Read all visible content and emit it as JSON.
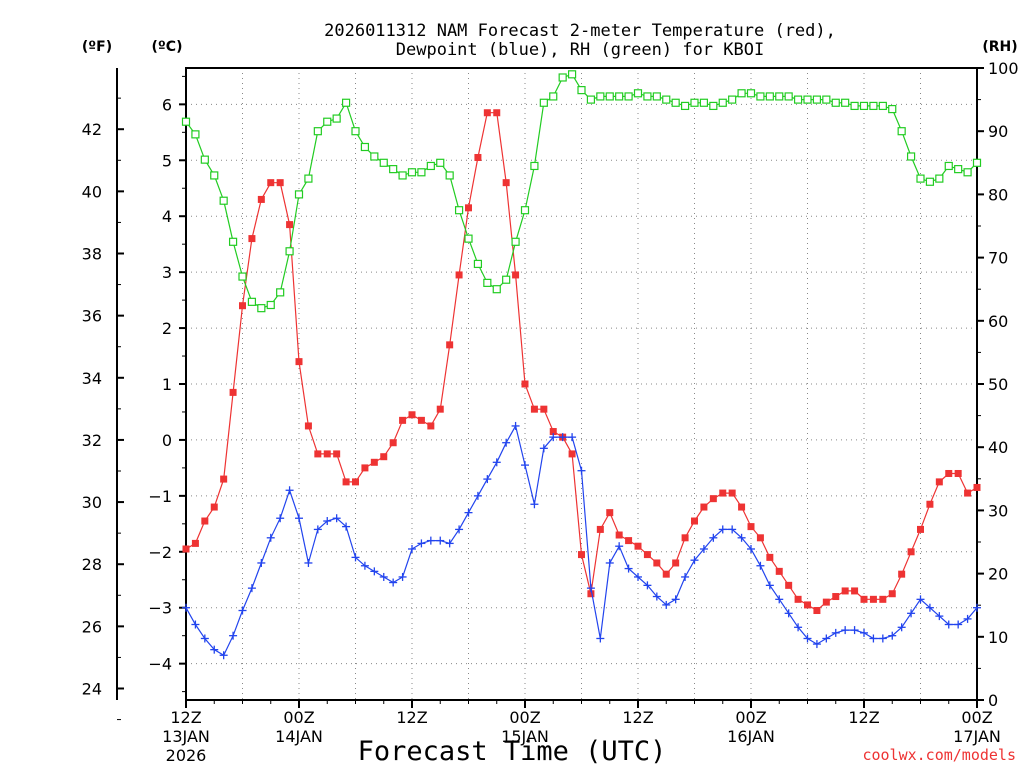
{
  "chart_data": {
    "type": "line",
    "title_line1": "2026011312 NAM Forecast 2-meter Temperature (red),",
    "title_line2": "Dewpoint (blue), RH (green) for KBOI",
    "xlabel": "Forecast Time (UTC)",
    "left_outer_unit": "(ºF)",
    "left_inner_unit": "(ºC)",
    "right_unit": "(RH)",
    "credit": "coolwx.com/models",
    "xlim": [
      0,
      84
    ],
    "ylim_c": [
      -4.65,
      6.65
    ],
    "ylim_rh": [
      0,
      100
    ],
    "grid": true,
    "x_ticks": [
      {
        "x": 0,
        "line1": "12Z",
        "line2": "13JAN",
        "line3": "2026"
      },
      {
        "x": 12,
        "line1": "00Z",
        "line2": "14JAN",
        "line3": ""
      },
      {
        "x": 24,
        "line1": "12Z",
        "line2": "",
        "line3": ""
      },
      {
        "x": 36,
        "line1": "00Z",
        "line2": "15JAN",
        "line3": ""
      },
      {
        "x": 48,
        "line1": "12Z",
        "line2": "",
        "line3": ""
      },
      {
        "x": 60,
        "line1": "00Z",
        "line2": "16JAN",
        "line3": ""
      },
      {
        "x": 72,
        "line1": "12Z",
        "line2": "",
        "line3": ""
      },
      {
        "x": 84,
        "line1": "00Z",
        "line2": "17JAN",
        "line3": ""
      }
    ],
    "c_ticks": [
      "6",
      "5",
      "4",
      "3",
      "2",
      "1",
      "0",
      "−1",
      "−2",
      "−3",
      "−4"
    ],
    "c_tick_values": [
      6,
      5,
      4,
      3,
      2,
      1,
      0,
      -1,
      -2,
      -3,
      -4
    ],
    "f_ticks": [
      "42",
      "40",
      "38",
      "36",
      "34",
      "32",
      "30",
      "28",
      "26",
      "24"
    ],
    "f_tick_values": [
      42,
      40,
      38,
      36,
      34,
      32,
      30,
      28,
      26,
      24
    ],
    "rh_ticks": [
      "100",
      "90",
      "80",
      "70",
      "60",
      "50",
      "40",
      "30",
      "20",
      "10",
      "0"
    ],
    "rh_tick_values": [
      100,
      90,
      80,
      70,
      60,
      50,
      40,
      30,
      20,
      10,
      0
    ],
    "series": [
      {
        "name": "Temperature",
        "color": "#ee3333",
        "marker": "filled-square",
        "axis": "C",
        "x": [
          0,
          1,
          2,
          3,
          4,
          5,
          6,
          7,
          8,
          9,
          10,
          11,
          12,
          13,
          14,
          15,
          16,
          17,
          18,
          19,
          20,
          21,
          22,
          23,
          24,
          25,
          26,
          27,
          28,
          29,
          30,
          31,
          32,
          33,
          34,
          35,
          36,
          37,
          38,
          39,
          40,
          41,
          42,
          43,
          44,
          45,
          46,
          47,
          48,
          49,
          50,
          51,
          52,
          53,
          54,
          55,
          56,
          57,
          58,
          59,
          60,
          61,
          62,
          63,
          64,
          65,
          66,
          67,
          68,
          69,
          70,
          71,
          72,
          73,
          74,
          75,
          76,
          77,
          78,
          79,
          80,
          81,
          82,
          83,
          84
        ],
        "values": [
          -1.95,
          -1.85,
          -1.45,
          -1.2,
          -0.7,
          0.85,
          2.4,
          3.6,
          4.3,
          4.6,
          4.6,
          3.85,
          1.4,
          0.25,
          -0.25,
          -0.25,
          -0.25,
          -0.75,
          -0.75,
          -0.5,
          -0.4,
          -0.3,
          -0.05,
          0.35,
          0.45,
          0.35,
          0.25,
          0.55,
          1.7,
          2.95,
          4.15,
          5.05,
          5.85,
          5.85,
          4.6,
          2.95,
          1.0,
          0.55,
          0.55,
          0.15,
          0.05,
          -0.25,
          -2.05,
          -2.75,
          -1.6,
          -1.3,
          -1.7,
          -1.8,
          -1.9,
          -2.05,
          -2.2,
          -2.4,
          -2.2,
          -1.75,
          -1.45,
          -1.2,
          -1.05,
          -0.95,
          -0.95,
          -1.2,
          -1.55,
          -1.75,
          -2.1,
          -2.35,
          -2.6,
          -2.85,
          -2.95,
          -3.05,
          -2.9,
          -2.8,
          -2.7,
          -2.7,
          -2.85,
          -2.85,
          -2.85,
          -2.75,
          -2.4,
          -2.0,
          -1.6,
          -1.15,
          -0.75,
          -0.6,
          -0.6,
          -0.95,
          -0.85
        ]
      },
      {
        "name": "Dewpoint",
        "color": "#2244ee",
        "marker": "plus",
        "axis": "C",
        "x": [
          0,
          1,
          2,
          3,
          4,
          5,
          6,
          7,
          8,
          9,
          10,
          11,
          12,
          13,
          14,
          15,
          16,
          17,
          18,
          19,
          20,
          21,
          22,
          23,
          24,
          25,
          26,
          27,
          28,
          29,
          30,
          31,
          32,
          33,
          34,
          35,
          36,
          37,
          38,
          39,
          40,
          41,
          42,
          43,
          44,
          45,
          46,
          47,
          48,
          49,
          50,
          51,
          52,
          53,
          54,
          55,
          56,
          57,
          58,
          59,
          60,
          61,
          62,
          63,
          64,
          65,
          66,
          67,
          68,
          69,
          70,
          71,
          72,
          73,
          74,
          75,
          76,
          77,
          78,
          79,
          80,
          81,
          82,
          83,
          84
        ],
        "values": [
          -3.0,
          -3.3,
          -3.55,
          -3.75,
          -3.85,
          -3.5,
          -3.05,
          -2.65,
          -2.2,
          -1.75,
          -1.4,
          -0.9,
          -1.4,
          -2.2,
          -1.6,
          -1.45,
          -1.4,
          -1.55,
          -2.1,
          -2.25,
          -2.35,
          -2.45,
          -2.55,
          -2.45,
          -1.95,
          -1.85,
          -1.8,
          -1.8,
          -1.85,
          -1.6,
          -1.3,
          -1.0,
          -0.7,
          -0.4,
          -0.05,
          0.25,
          -0.45,
          -1.15,
          -0.15,
          0.05,
          0.05,
          0.05,
          -0.55,
          -2.65,
          -3.55,
          -2.2,
          -1.9,
          -2.3,
          -2.45,
          -2.6,
          -2.8,
          -2.95,
          -2.85,
          -2.45,
          -2.15,
          -1.95,
          -1.75,
          -1.6,
          -1.6,
          -1.75,
          -1.95,
          -2.25,
          -2.6,
          -2.85,
          -3.1,
          -3.35,
          -3.55,
          -3.65,
          -3.55,
          -3.45,
          -3.4,
          -3.4,
          -3.45,
          -3.55,
          -3.55,
          -3.5,
          -3.35,
          -3.1,
          -2.85,
          -3.0,
          -3.15,
          -3.3,
          -3.3,
          -3.2,
          -3.0
        ]
      },
      {
        "name": "RH",
        "color": "#22cc22",
        "marker": "open-square",
        "axis": "RH",
        "x": [
          0,
          1,
          2,
          3,
          4,
          5,
          6,
          7,
          8,
          9,
          10,
          11,
          12,
          13,
          14,
          15,
          16,
          17,
          18,
          19,
          20,
          21,
          22,
          23,
          24,
          25,
          26,
          27,
          28,
          29,
          30,
          31,
          32,
          33,
          34,
          35,
          36,
          37,
          38,
          39,
          40,
          41,
          42,
          43,
          44,
          45,
          46,
          47,
          48,
          49,
          50,
          51,
          52,
          53,
          54,
          55,
          56,
          57,
          58,
          59,
          60,
          61,
          62,
          63,
          64,
          65,
          66,
          67,
          68,
          69,
          70,
          71,
          72,
          73,
          74,
          75,
          76,
          77,
          78,
          79,
          80,
          81,
          82,
          83,
          84
        ],
        "values": [
          91.5,
          89.5,
          85.5,
          83.0,
          79.0,
          72.5,
          67.0,
          63.0,
          62.0,
          62.5,
          64.5,
          71.0,
          80.0,
          82.5,
          90.0,
          91.5,
          92.0,
          94.5,
          90.0,
          87.5,
          86.0,
          85.0,
          84.0,
          83.0,
          83.5,
          83.5,
          84.5,
          85.0,
          83.0,
          77.5,
          73.0,
          69.0,
          66.0,
          65.0,
          66.5,
          72.5,
          77.5,
          84.5,
          94.5,
          95.5,
          98.5,
          99.0,
          96.5,
          95.0,
          95.5,
          95.5,
          95.5,
          95.5,
          96.0,
          95.5,
          95.5,
          95.0,
          94.5,
          94.0,
          94.5,
          94.5,
          94.0,
          94.5,
          95.0,
          96.0,
          96.0,
          95.5,
          95.5,
          95.5,
          95.5,
          95.0,
          95.0,
          95.0,
          95.0,
          94.5,
          94.5,
          94.0,
          94.0,
          94.0,
          94.0,
          93.5,
          90.0,
          86.0,
          82.5,
          82.0,
          82.5,
          84.5,
          84.0,
          83.5,
          85.0
        ]
      }
    ]
  }
}
